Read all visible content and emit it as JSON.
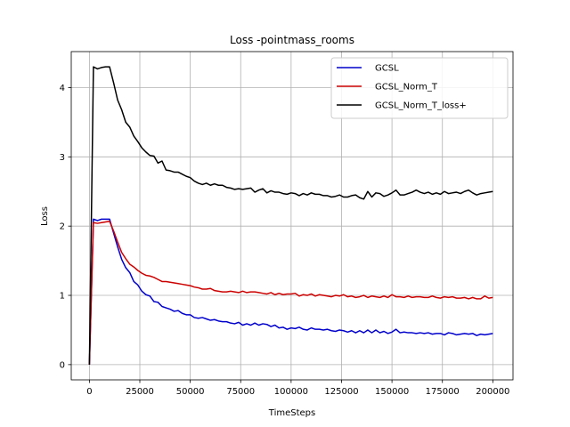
{
  "chart_data": {
    "type": "line",
    "title": "Loss -pointmass_rooms",
    "xlabel": "TimeSteps",
    "ylabel": "Loss",
    "xlim": [
      -9000,
      210000
    ],
    "ylim": [
      -0.22,
      4.52
    ],
    "xticks": [
      0,
      25000,
      50000,
      75000,
      100000,
      125000,
      150000,
      175000,
      200000
    ],
    "yticks": [
      0,
      1,
      2,
      3,
      4
    ],
    "grid": true,
    "legend_position": "top-right",
    "series": [
      {
        "name": "GCSL",
        "color": "#0000cc",
        "x": [
          0,
          2000,
          4000,
          6000,
          8000,
          10000,
          12000,
          14000,
          16000,
          18000,
          20000,
          22000,
          24000,
          26000,
          28000,
          30000,
          32000,
          34000,
          36000,
          38000,
          40000,
          42000,
          44000,
          46000,
          48000,
          50000,
          52000,
          54000,
          56000,
          58000,
          60000,
          62000,
          64000,
          66000,
          68000,
          70000,
          72000,
          74000,
          76000,
          78000,
          80000,
          82000,
          84000,
          86000,
          88000,
          90000,
          92000,
          94000,
          96000,
          98000,
          100000,
          102000,
          104000,
          106000,
          108000,
          110000,
          112000,
          114000,
          116000,
          118000,
          120000,
          122000,
          124000,
          126000,
          128000,
          130000,
          132000,
          134000,
          136000,
          138000,
          140000,
          142000,
          144000,
          146000,
          148000,
          150000,
          152000,
          154000,
          156000,
          158000,
          160000,
          162000,
          164000,
          166000,
          168000,
          170000,
          172000,
          174000,
          176000,
          178000,
          180000,
          182000,
          184000,
          186000,
          188000,
          190000,
          192000,
          194000,
          196000,
          198000,
          200000
        ],
        "values": [
          0.0,
          2.1,
          2.08,
          2.1,
          2.1,
          2.1,
          1.9,
          1.7,
          1.52,
          1.4,
          1.33,
          1.2,
          1.15,
          1.06,
          1.01,
          0.99,
          0.91,
          0.9,
          0.84,
          0.82,
          0.8,
          0.77,
          0.78,
          0.74,
          0.72,
          0.72,
          0.68,
          0.67,
          0.68,
          0.66,
          0.64,
          0.65,
          0.63,
          0.62,
          0.62,
          0.6,
          0.59,
          0.61,
          0.57,
          0.59,
          0.57,
          0.6,
          0.57,
          0.59,
          0.58,
          0.55,
          0.57,
          0.53,
          0.54,
          0.51,
          0.53,
          0.52,
          0.54,
          0.51,
          0.5,
          0.53,
          0.51,
          0.51,
          0.5,
          0.51,
          0.49,
          0.48,
          0.5,
          0.49,
          0.47,
          0.49,
          0.46,
          0.49,
          0.46,
          0.5,
          0.46,
          0.5,
          0.46,
          0.48,
          0.45,
          0.47,
          0.51,
          0.46,
          0.47,
          0.46,
          0.46,
          0.45,
          0.46,
          0.45,
          0.46,
          0.44,
          0.45,
          0.45,
          0.43,
          0.46,
          0.45,
          0.43,
          0.44,
          0.45,
          0.44,
          0.45,
          0.42,
          0.44,
          0.43,
          0.44,
          0.45
        ]
      },
      {
        "name": "GCSL_Norm_T",
        "color": "#cc0000",
        "x": [
          0,
          2000,
          4000,
          6000,
          8000,
          10000,
          12000,
          14000,
          16000,
          18000,
          20000,
          22000,
          24000,
          26000,
          28000,
          30000,
          32000,
          34000,
          36000,
          38000,
          40000,
          42000,
          44000,
          46000,
          48000,
          50000,
          52000,
          54000,
          56000,
          58000,
          60000,
          62000,
          64000,
          66000,
          68000,
          70000,
          72000,
          74000,
          76000,
          78000,
          80000,
          82000,
          84000,
          86000,
          88000,
          90000,
          92000,
          94000,
          96000,
          98000,
          100000,
          102000,
          104000,
          106000,
          108000,
          110000,
          112000,
          114000,
          116000,
          118000,
          120000,
          122000,
          124000,
          126000,
          128000,
          130000,
          132000,
          134000,
          136000,
          138000,
          140000,
          142000,
          144000,
          146000,
          148000,
          150000,
          152000,
          154000,
          156000,
          158000,
          160000,
          162000,
          164000,
          166000,
          168000,
          170000,
          172000,
          174000,
          176000,
          178000,
          180000,
          182000,
          184000,
          186000,
          188000,
          190000,
          192000,
          194000,
          196000,
          198000,
          200000
        ],
        "values": [
          0.0,
          2.05,
          2.04,
          2.05,
          2.06,
          2.07,
          1.93,
          1.77,
          1.62,
          1.53,
          1.45,
          1.41,
          1.36,
          1.32,
          1.29,
          1.28,
          1.26,
          1.23,
          1.2,
          1.2,
          1.19,
          1.18,
          1.17,
          1.16,
          1.15,
          1.14,
          1.12,
          1.11,
          1.09,
          1.09,
          1.1,
          1.07,
          1.06,
          1.05,
          1.05,
          1.06,
          1.05,
          1.04,
          1.06,
          1.04,
          1.05,
          1.05,
          1.04,
          1.03,
          1.02,
          1.04,
          1.01,
          1.03,
          1.01,
          1.02,
          1.02,
          1.03,
          0.99,
          1.01,
          1.0,
          1.02,
          0.99,
          1.01,
          1.0,
          0.99,
          0.98,
          1.0,
          0.99,
          1.01,
          0.98,
          0.99,
          0.97,
          0.98,
          1.0,
          0.97,
          0.99,
          0.98,
          0.97,
          0.99,
          0.97,
          1.01,
          0.98,
          0.98,
          0.97,
          0.99,
          0.97,
          0.98,
          0.98,
          0.97,
          0.97,
          0.99,
          0.97,
          0.96,
          0.98,
          0.97,
          0.98,
          0.96,
          0.96,
          0.97,
          0.95,
          0.97,
          0.95,
          0.95,
          0.99,
          0.96,
          0.97
        ]
      },
      {
        "name": "GCSL_Norm_T_loss+",
        "color": "#000000",
        "x": [
          0,
          2000,
          4000,
          6000,
          8000,
          10000,
          12000,
          14000,
          16000,
          18000,
          20000,
          22000,
          24000,
          26000,
          28000,
          30000,
          32000,
          34000,
          36000,
          38000,
          40000,
          42000,
          44000,
          46000,
          48000,
          50000,
          52000,
          54000,
          56000,
          58000,
          60000,
          62000,
          64000,
          66000,
          68000,
          70000,
          72000,
          74000,
          76000,
          78000,
          80000,
          82000,
          84000,
          86000,
          88000,
          90000,
          92000,
          94000,
          96000,
          98000,
          100000,
          102000,
          104000,
          106000,
          108000,
          110000,
          112000,
          114000,
          116000,
          118000,
          120000,
          122000,
          124000,
          126000,
          128000,
          130000,
          132000,
          134000,
          136000,
          138000,
          140000,
          142000,
          144000,
          146000,
          148000,
          150000,
          152000,
          154000,
          156000,
          158000,
          160000,
          162000,
          164000,
          166000,
          168000,
          170000,
          172000,
          174000,
          176000,
          178000,
          180000,
          182000,
          184000,
          186000,
          188000,
          190000,
          192000,
          194000,
          196000,
          198000,
          200000
        ],
        "values": [
          0.0,
          4.3,
          4.27,
          4.29,
          4.3,
          4.3,
          4.07,
          3.82,
          3.68,
          3.5,
          3.43,
          3.3,
          3.22,
          3.13,
          3.07,
          3.02,
          3.01,
          2.91,
          2.94,
          2.81,
          2.8,
          2.78,
          2.78,
          2.75,
          2.72,
          2.7,
          2.65,
          2.62,
          2.6,
          2.62,
          2.59,
          2.61,
          2.59,
          2.59,
          2.56,
          2.55,
          2.53,
          2.54,
          2.53,
          2.54,
          2.55,
          2.49,
          2.52,
          2.54,
          2.48,
          2.51,
          2.49,
          2.49,
          2.47,
          2.46,
          2.48,
          2.47,
          2.44,
          2.47,
          2.45,
          2.48,
          2.46,
          2.46,
          2.44,
          2.44,
          2.42,
          2.43,
          2.45,
          2.42,
          2.42,
          2.44,
          2.45,
          2.41,
          2.39,
          2.5,
          2.42,
          2.48,
          2.47,
          2.43,
          2.45,
          2.48,
          2.52,
          2.45,
          2.45,
          2.47,
          2.49,
          2.52,
          2.49,
          2.47,
          2.49,
          2.46,
          2.48,
          2.46,
          2.5,
          2.47,
          2.48,
          2.49,
          2.47,
          2.5,
          2.52,
          2.48,
          2.45,
          2.47,
          2.48,
          2.49,
          2.5
        ]
      }
    ]
  }
}
